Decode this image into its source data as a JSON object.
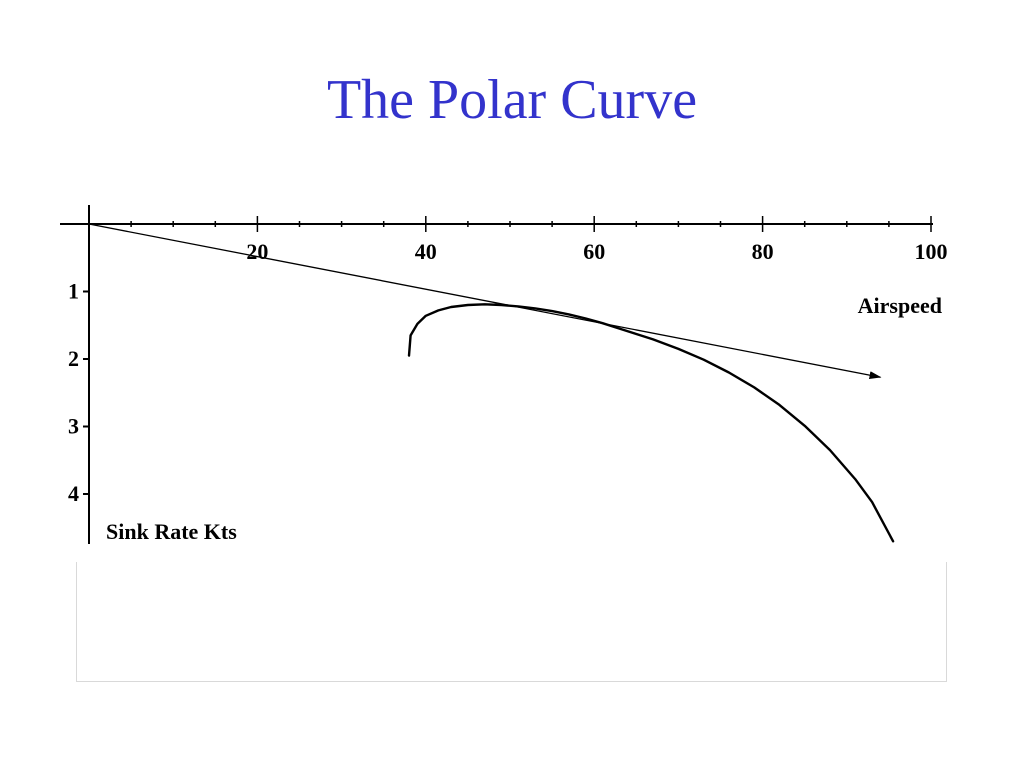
{
  "slide": {
    "title": "The Polar Curve",
    "title_color": "#3333cc"
  },
  "chart_data": {
    "type": "line",
    "xlabel": "Airspeed",
    "ylabel": "Sink Rate Kts",
    "xlim": [
      0,
      100
    ],
    "ylim": [
      0,
      4.8
    ],
    "x_ticks": [
      20,
      40,
      60,
      80,
      100
    ],
    "x_minor_ticks": [
      5,
      10,
      15,
      25,
      30,
      35,
      45,
      50,
      55,
      65,
      70,
      75,
      85,
      90,
      95
    ],
    "y_ticks": [
      1,
      2,
      3,
      4
    ],
    "y_axis_inverted": true,
    "grid": false,
    "series": [
      {
        "x": [
          38,
          38.2,
          39,
          40,
          41.5,
          43,
          45,
          47,
          49,
          51,
          53,
          55,
          57,
          59,
          61,
          63,
          65,
          67,
          70,
          73,
          76,
          79,
          82,
          85,
          88,
          91,
          93,
          95.5
        ],
        "y": [
          1.95,
          1.65,
          1.48,
          1.36,
          1.28,
          1.23,
          1.2,
          1.19,
          1.2,
          1.22,
          1.25,
          1.29,
          1.34,
          1.4,
          1.47,
          1.55,
          1.63,
          1.71,
          1.85,
          2.01,
          2.2,
          2.42,
          2.68,
          2.99,
          3.35,
          3.78,
          4.12,
          4.7
        ]
      }
    ],
    "tangent_line": {
      "x": [
        0,
        94
      ],
      "y": [
        0,
        2.27
      ],
      "arrow": true
    }
  }
}
